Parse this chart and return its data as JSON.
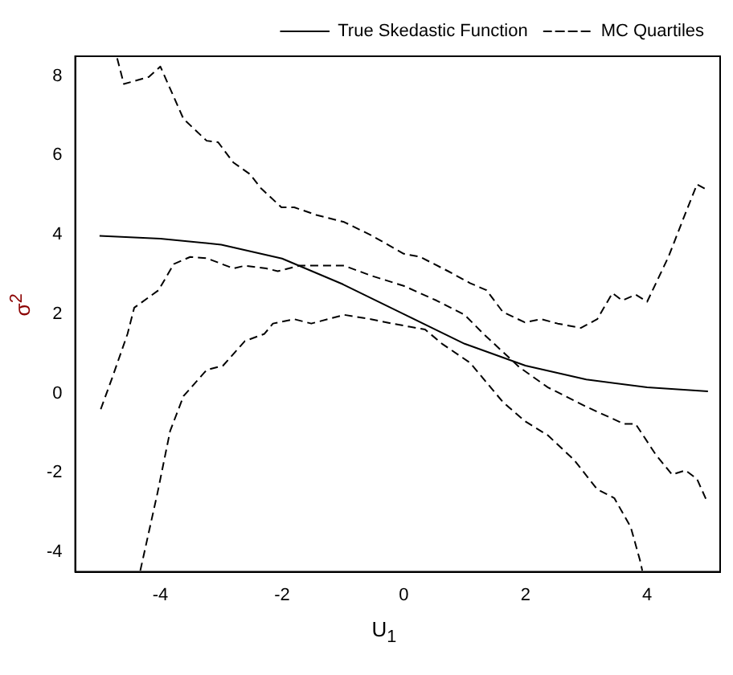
{
  "chart_data": {
    "type": "line",
    "xlabel": "U$_{1}$",
    "ylabel": "σ$^{2}$",
    "xlim": [
      -5.4,
      5.2
    ],
    "ylim": [
      -4.5,
      8.5
    ],
    "xticks": [
      -4,
      -2,
      0,
      2,
      4
    ],
    "yticks": [
      -4,
      -2,
      0,
      2,
      4,
      6,
      8
    ],
    "grid": false,
    "legend": "top right",
    "marker": "none",
    "series": [
      {
        "name": "True Skedastic Function",
        "color": "#000000",
        "line_style": "solid",
        "x": [
          -5,
          -4,
          -3,
          -2,
          -1,
          0,
          1,
          2,
          3,
          4,
          5
        ],
        "values": [
          3.97,
          3.9,
          3.75,
          3.4,
          2.75,
          2.0,
          1.25,
          0.7,
          0.35,
          0.15,
          0.05
        ]
      },
      {
        "name": "MC Quartiles",
        "color": "#000000",
        "line_style": "dashed",
        "x": [
          -4.71,
          -4.6,
          -4.19,
          -4.0,
          -3.62,
          -3.24,
          -3.05,
          -2.8,
          -2.53,
          -2.34,
          -2.01,
          -1.8,
          -1.44,
          -0.98,
          -0.54,
          0,
          0.27,
          0.73,
          1.09,
          1.36,
          1.63,
          1.99,
          2.26,
          2.53,
          2.91,
          3.18,
          3.43,
          3.59,
          3.81,
          4.0,
          4.35,
          4.63,
          4.82,
          4.95
        ],
        "values": [
          8.45,
          7.8,
          7.98,
          8.24,
          6.92,
          6.37,
          6.33,
          5.82,
          5.53,
          5.16,
          4.69,
          4.69,
          4.5,
          4.32,
          3.99,
          3.52,
          3.44,
          3.08,
          2.78,
          2.6,
          2.05,
          1.79,
          1.87,
          1.76,
          1.65,
          1.87,
          2.53,
          2.34,
          2.49,
          2.31,
          3.44,
          4.54,
          5.27,
          5.16
        ]
      },
      {
        "color": "#000000",
        "line_style": "dashed",
        "x": [
          -4.98,
          -4.79,
          -4.54,
          -4.43,
          -4.03,
          -3.78,
          -3.51,
          -3.24,
          -2.8,
          -2.61,
          -2.26,
          -2.07,
          -1.71,
          -0.98,
          -0.54,
          0,
          0.54,
          1.0,
          1.31,
          1.9,
          2.37,
          2.99,
          3.62,
          3.81,
          4.14,
          4.41,
          4.63,
          4.82,
          4.98
        ],
        "values": [
          -0.4,
          0.4,
          1.5,
          2.16,
          2.6,
          3.26,
          3.44,
          3.41,
          3.15,
          3.22,
          3.15,
          3.08,
          3.22,
          3.22,
          2.97,
          2.71,
          2.34,
          1.98,
          1.5,
          0.66,
          0.15,
          -0.33,
          -0.77,
          -0.77,
          -1.54,
          -2.05,
          -1.94,
          -2.16,
          -2.71
        ]
      },
      {
        "color": "#000000",
        "line_style": "dashed",
        "x": [
          -4.33,
          -4.05,
          -3.84,
          -3.62,
          -3.24,
          -2.97,
          -2.61,
          -2.29,
          -2.15,
          -1.8,
          -1.52,
          -0.98,
          -0.54,
          -0.19,
          0.35,
          0.63,
          1.09,
          1.63,
          1.99,
          2.37,
          2.8,
          3.18,
          3.46,
          3.73,
          3.89,
          3.92
        ],
        "values": [
          -4.47,
          -2.53,
          -0.95,
          -0.07,
          0.59,
          0.7,
          1.32,
          1.5,
          1.76,
          1.87,
          1.76,
          1.98,
          1.87,
          1.76,
          1.61,
          1.25,
          0.77,
          -0.22,
          -0.7,
          -1.06,
          -1.68,
          -2.42,
          -2.64,
          -3.37,
          -4.25,
          -4.47
        ]
      }
    ]
  }
}
